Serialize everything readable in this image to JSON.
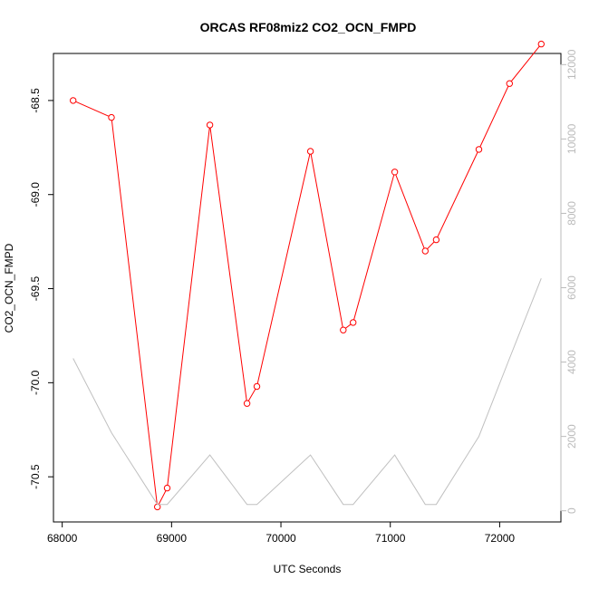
{
  "chart_data": {
    "type": "line",
    "title": "ORCAS RF08miz2 CO2_OCN_FMPD",
    "xlabel": "UTC Seconds",
    "ylabel": "CO2_OCN_FMPD",
    "xlim": [
      67920,
      72560
    ],
    "ylim": [
      -70.74,
      -68.25
    ],
    "y2lim": [
      -300,
      12300
    ],
    "x_ticks": [
      68000,
      69000,
      70000,
      71000,
      72000
    ],
    "x_tick_labels": [
      "68000",
      "69000",
      "70000",
      "71000",
      "72000"
    ],
    "y_ticks": [
      -70.5,
      -70.0,
      -69.5,
      -69.0,
      -68.5
    ],
    "y_tick_labels": [
      "-70.5",
      "-70.0",
      "-69.5",
      "-69.0",
      "-68.5"
    ],
    "y2_ticks": [
      0,
      2000,
      4000,
      6000,
      8000,
      10000,
      12000
    ],
    "y2_tick_labels": [
      "0",
      "2000",
      "4000",
      "6000",
      "8000",
      "10000",
      "12000"
    ],
    "grid": false,
    "series": [
      {
        "axis": "left",
        "color": "#ff0000",
        "style": "line+circle",
        "x": [
          68100,
          68450,
          68870,
          68960,
          69350,
          69690,
          69780,
          70270,
          70570,
          70660,
          71040,
          71320,
          71420,
          71810,
          72090,
          72380
        ],
        "y": [
          -68.5,
          -68.59,
          -70.66,
          -70.56,
          -68.63,
          -70.11,
          -70.02,
          -68.77,
          -69.72,
          -69.68,
          -68.88,
          -69.3,
          -69.24,
          -68.76,
          -68.41,
          -68.2
        ]
      },
      {
        "axis": "right",
        "color": "#c0c0c0",
        "style": "line",
        "x": [
          68100,
          68450,
          68870,
          68960,
          69350,
          69690,
          69780,
          70270,
          70570,
          70660,
          71040,
          71320,
          71420,
          71810,
          72090,
          72380
        ],
        "y": [
          4100,
          2100,
          170,
          170,
          1500,
          170,
          170,
          1500,
          170,
          170,
          1500,
          170,
          170,
          2000,
          4100,
          6250
        ]
      }
    ]
  }
}
